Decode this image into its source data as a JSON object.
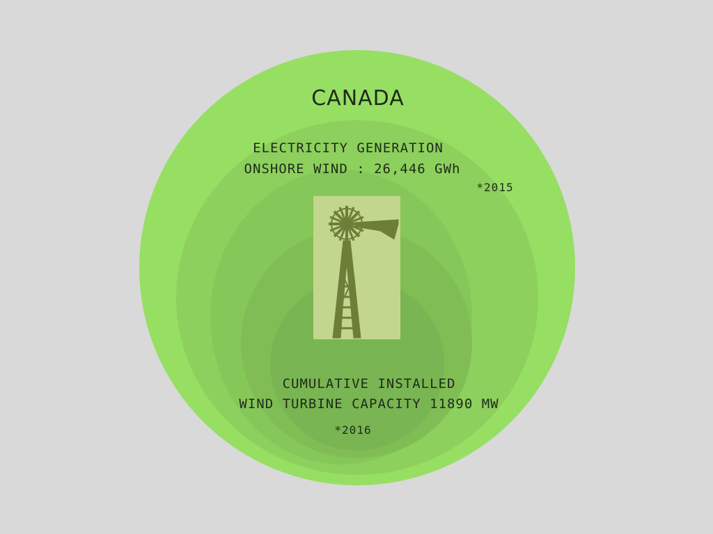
{
  "colors": {
    "background": "#d9d9d9",
    "circle_1": "#96df63",
    "circle_2": "#8dd05d",
    "circle_3": "#86c759",
    "circle_4": "#80be55",
    "circle_5": "#79b552",
    "windmill_panel": "#c3d68e",
    "windmill_silhouette": "#6d7e38",
    "text": "#1f2a1a"
  },
  "infographic": {
    "title": "CANADA",
    "generation_label": "ELECTRICITY GENERATION",
    "generation_value": "ONSHORE WIND : 26,446 GWh",
    "generation_note": "*2015",
    "capacity_label": "CUMULATIVE INSTALLED",
    "capacity_value": "WIND TURBINE CAPACITY 11890 MW",
    "capacity_note": "*2016",
    "icon": "windmill-icon"
  }
}
